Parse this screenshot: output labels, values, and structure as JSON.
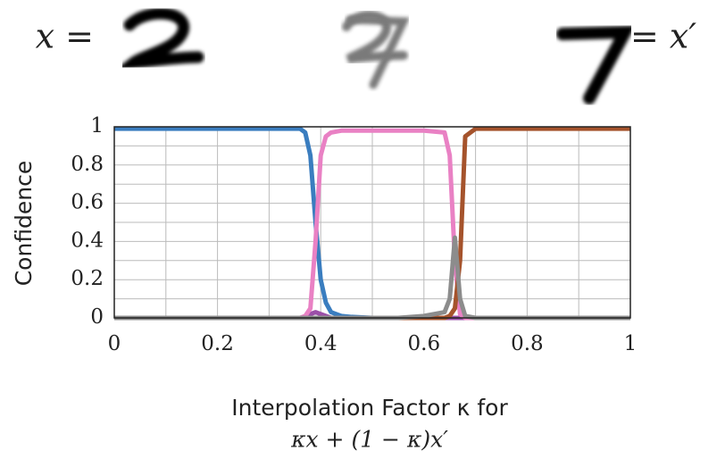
{
  "chart_data": {
    "type": "line",
    "left_label": "x =",
    "right_label": "= x′",
    "ylabel": "Confidence",
    "xlabel": [
      "Interpolation Factor κ for",
      "κx + (1 − κ)x′"
    ],
    "x": [
      0,
      0.1,
      0.2,
      0.3,
      0.36,
      0.37,
      0.38,
      0.39,
      0.4,
      0.41,
      0.42,
      0.44,
      0.46,
      0.5,
      0.55,
      0.6,
      0.64,
      0.65,
      0.66,
      0.67,
      0.68,
      0.7,
      0.8,
      0.9,
      1
    ],
    "series": [
      {
        "color": "#3a7dbf",
        "values": [
          0.99,
          0.99,
          0.99,
          0.99,
          0.99,
          0.97,
          0.85,
          0.5,
          0.2,
          0.08,
          0.03,
          0.01,
          0.005,
          0,
          0,
          0,
          0,
          0,
          0,
          0,
          0,
          0,
          0,
          0,
          0
        ]
      },
      {
        "color": "#9b4fa8",
        "values": [
          0,
          0,
          0,
          0,
          0,
          0,
          0.02,
          0.03,
          0.02,
          0.01,
          0,
          0,
          0,
          0,
          0,
          0,
          0,
          0,
          0,
          0,
          0,
          0,
          0,
          0,
          0
        ]
      },
      {
        "color": "#e981c4",
        "values": [
          0,
          0,
          0,
          0,
          0,
          0.01,
          0.05,
          0.4,
          0.85,
          0.95,
          0.97,
          0.98,
          0.98,
          0.98,
          0.98,
          0.98,
          0.97,
          0.85,
          0.3,
          0.02,
          0,
          0,
          0,
          0,
          0
        ]
      },
      {
        "color": "#a5532c",
        "values": [
          0,
          0,
          0,
          0,
          0,
          0,
          0,
          0,
          0,
          0,
          0,
          0,
          0,
          0,
          0,
          0,
          0,
          0.01,
          0.05,
          0.3,
          0.95,
          0.99,
          0.99,
          0.99,
          0.99
        ]
      },
      {
        "color": "#8c8c8c",
        "values": [
          0,
          0,
          0,
          0,
          0,
          0,
          0,
          0,
          0,
          0,
          0,
          0,
          0,
          0,
          0,
          0.01,
          0.03,
          0.1,
          0.42,
          0.1,
          0.01,
          0,
          0,
          0,
          0
        ]
      }
    ],
    "xlim": [
      0,
      1
    ],
    "ylim": [
      0,
      1
    ],
    "xticks": [
      0,
      0.2,
      0.4,
      0.6,
      0.8,
      1
    ],
    "yticks": [
      0,
      0.2,
      0.4,
      0.6,
      0.8,
      1
    ],
    "minor_xticks": [
      0.1,
      0.3,
      0.5,
      0.7,
      0.9
    ],
    "minor_yticks": [
      0.1,
      0.3,
      0.5,
      0.7,
      0.9
    ],
    "grid": true
  }
}
